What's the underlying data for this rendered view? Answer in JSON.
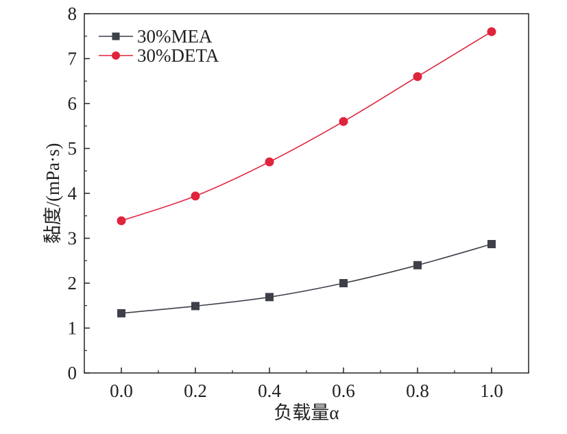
{
  "chart_data": {
    "type": "line",
    "x": [
      0.0,
      0.2,
      0.4,
      0.6,
      0.8,
      1.0
    ],
    "x_tick_labels": [
      "0.0",
      "0.2",
      "0.4",
      "0.6",
      "0.8",
      "1.0"
    ],
    "y_tick_labels": [
      "0",
      "1",
      "2",
      "3",
      "4",
      "5",
      "6",
      "7",
      "8"
    ],
    "xlabel": "负载量α",
    "ylabel": "黏度/(mPa·s)",
    "xlim": [
      -0.1,
      1.1
    ],
    "ylim": [
      0,
      8
    ],
    "grid": false,
    "legend_position": "top-left",
    "series": [
      {
        "name": "30%MEA",
        "marker": "square",
        "color": "#3d3f49",
        "values": [
          1.33,
          1.49,
          1.69,
          2.0,
          2.4,
          2.87
        ]
      },
      {
        "name": "30%DETA",
        "marker": "circle",
        "color": "#e0243c",
        "values": [
          3.39,
          3.94,
          4.7,
          5.6,
          6.6,
          7.6
        ]
      }
    ]
  }
}
